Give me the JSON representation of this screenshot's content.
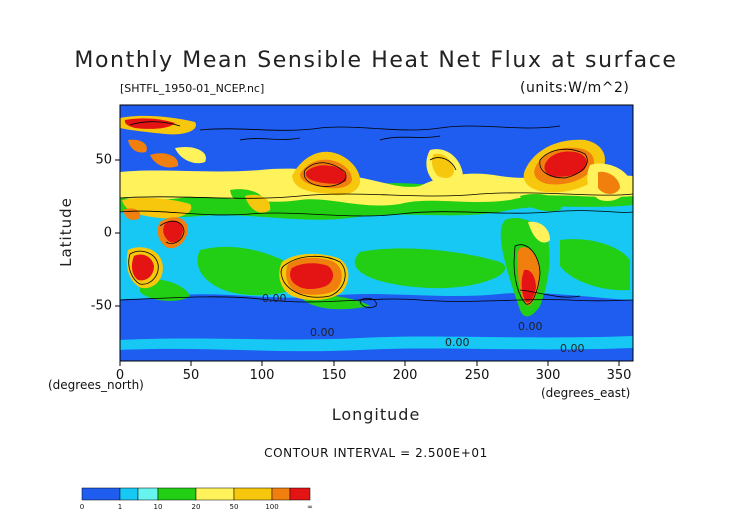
{
  "title": "Monthly Mean Sensible Heat Net Flux at surface",
  "file_label": "[SHTFL_1950-01_NCEP.nc]",
  "units_label": "(units:W/m^2)",
  "y_axis_title": "Latitude",
  "y_axis_units": "(degrees_north)",
  "x_axis_title": "Longitude",
  "x_axis_units": "(degrees_east)",
  "x_ticks": [
    "0",
    "50",
    "100",
    "150",
    "200",
    "250",
    "300",
    "350"
  ],
  "y_ticks": [
    "50",
    "0",
    "-50"
  ],
  "contour_interval": "CONTOUR INTERVAL = 2.500E+01",
  "contour_labels": [
    "0.00",
    "0.00",
    "0.00",
    "0.00",
    "0.00"
  ],
  "legend": {
    "labels": [
      "0",
      "1",
      "10",
      "20",
      "50",
      "100",
      "∞"
    ],
    "colors": [
      "#1f5cf0",
      "#17c8f5",
      "#67f4ee",
      "#22cf14",
      "#fff25a",
      "#f7c70e",
      "#f07f0e",
      "#e51414"
    ]
  },
  "colors": {
    "ocean_low": "#1f5cf0",
    "cyan": "#17c8f5",
    "green": "#22cf14",
    "yellow": "#fff25a",
    "orange": "#f7c70e",
    "dark_orange": "#f07f0e",
    "red": "#e51414"
  }
}
